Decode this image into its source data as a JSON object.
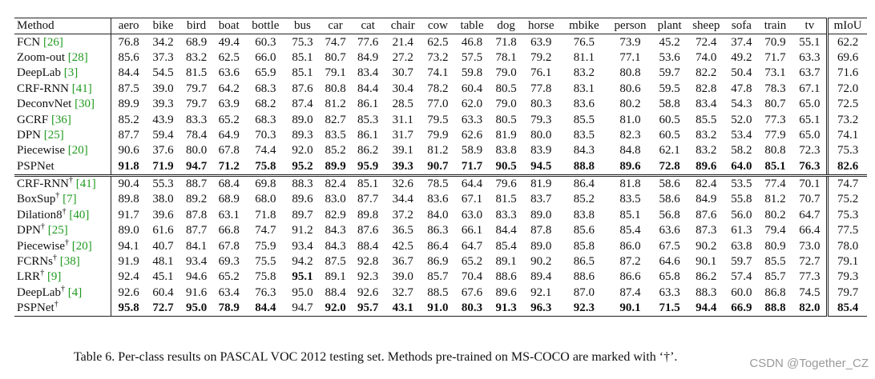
{
  "table": {
    "header": [
      "Method",
      "aero",
      "bike",
      "bird",
      "boat",
      "bottle",
      "bus",
      "car",
      "cat",
      "chair",
      "cow",
      "table",
      "dog",
      "horse",
      "mbike",
      "person",
      "plant",
      "sheep",
      "sofa",
      "train",
      "tv",
      "mIoU"
    ],
    "groups": [
      [
        {
          "method": "FCN",
          "cite": "[26]",
          "values": [
            "76.8",
            "34.2",
            "68.9",
            "49.4",
            "60.3",
            "75.3",
            "74.7",
            "77.6",
            "21.4",
            "62.5",
            "46.8",
            "71.8",
            "63.9",
            "76.5",
            "73.9",
            "45.2",
            "72.4",
            "37.4",
            "70.9",
            "55.1",
            "62.2"
          ]
        },
        {
          "method": "Zoom-out",
          "cite": "[28]",
          "values": [
            "85.6",
            "37.3",
            "83.2",
            "62.5",
            "66.0",
            "85.1",
            "80.7",
            "84.9",
            "27.2",
            "73.2",
            "57.5",
            "78.1",
            "79.2",
            "81.1",
            "77.1",
            "53.6",
            "74.0",
            "49.2",
            "71.7",
            "63.3",
            "69.6"
          ]
        },
        {
          "method": "DeepLab",
          "cite": "[3]",
          "values": [
            "84.4",
            "54.5",
            "81.5",
            "63.6",
            "65.9",
            "85.1",
            "79.1",
            "83.4",
            "30.7",
            "74.1",
            "59.8",
            "79.0",
            "76.1",
            "83.2",
            "80.8",
            "59.7",
            "82.2",
            "50.4",
            "73.1",
            "63.7",
            "71.6"
          ]
        },
        {
          "method": "CRF-RNN",
          "cite": "[41]",
          "values": [
            "87.5",
            "39.0",
            "79.7",
            "64.2",
            "68.3",
            "87.6",
            "80.8",
            "84.4",
            "30.4",
            "78.2",
            "60.4",
            "80.5",
            "77.8",
            "83.1",
            "80.6",
            "59.5",
            "82.8",
            "47.8",
            "78.3",
            "67.1",
            "72.0"
          ]
        },
        {
          "method": "DeconvNet",
          "cite": "[30]",
          "values": [
            "89.9",
            "39.3",
            "79.7",
            "63.9",
            "68.2",
            "87.4",
            "81.2",
            "86.1",
            "28.5",
            "77.0",
            "62.0",
            "79.0",
            "80.3",
            "83.6",
            "80.2",
            "58.8",
            "83.4",
            "54.3",
            "80.7",
            "65.0",
            "72.5"
          ]
        },
        {
          "method": "GCRF",
          "cite": "[36]",
          "values": [
            "85.2",
            "43.9",
            "83.3",
            "65.2",
            "68.3",
            "89.0",
            "82.7",
            "85.3",
            "31.1",
            "79.5",
            "63.3",
            "80.5",
            "79.3",
            "85.5",
            "81.0",
            "60.5",
            "85.5",
            "52.0",
            "77.3",
            "65.1",
            "73.2"
          ]
        },
        {
          "method": "DPN",
          "cite": "[25]",
          "values": [
            "87.7",
            "59.4",
            "78.4",
            "64.9",
            "70.3",
            "89.3",
            "83.5",
            "86.1",
            "31.7",
            "79.9",
            "62.6",
            "81.9",
            "80.0",
            "83.5",
            "82.3",
            "60.5",
            "83.2",
            "53.4",
            "77.9",
            "65.0",
            "74.1"
          ]
        },
        {
          "method": "Piecewise",
          "cite": "[20]",
          "values": [
            "90.6",
            "37.6",
            "80.0",
            "67.8",
            "74.4",
            "92.0",
            "85.2",
            "86.2",
            "39.1",
            "81.2",
            "58.9",
            "83.8",
            "83.9",
            "84.3",
            "84.8",
            "62.1",
            "83.2",
            "58.2",
            "80.8",
            "72.3",
            "75.3"
          ]
        },
        {
          "method": "PSPNet",
          "bold": [
            0,
            1,
            2,
            3,
            4,
            5,
            6,
            7,
            8,
            9,
            10,
            11,
            12,
            13,
            14,
            15,
            16,
            17,
            18,
            19,
            20
          ],
          "values": [
            "91.8",
            "71.9",
            "94.7",
            "71.2",
            "75.8",
            "95.2",
            "89.9",
            "95.9",
            "39.3",
            "90.7",
            "71.7",
            "90.5",
            "94.5",
            "88.8",
            "89.6",
            "72.8",
            "89.6",
            "64.0",
            "85.1",
            "76.3",
            "82.6"
          ]
        }
      ],
      [
        {
          "method": "CRF-RNN",
          "mark": "†",
          "cite": "[41]",
          "values": [
            "90.4",
            "55.3",
            "88.7",
            "68.4",
            "69.8",
            "88.3",
            "82.4",
            "85.1",
            "32.6",
            "78.5",
            "64.4",
            "79.6",
            "81.9",
            "86.4",
            "81.8",
            "58.6",
            "82.4",
            "53.5",
            "77.4",
            "70.1",
            "74.7"
          ]
        },
        {
          "method": "BoxSup",
          "mark": "†",
          "cite": "[7]",
          "values": [
            "89.8",
            "38.0",
            "89.2",
            "68.9",
            "68.0",
            "89.6",
            "83.0",
            "87.7",
            "34.4",
            "83.6",
            "67.1",
            "81.5",
            "83.7",
            "85.2",
            "83.5",
            "58.6",
            "84.9",
            "55.8",
            "81.2",
            "70.7",
            "75.2"
          ]
        },
        {
          "method": "Dilation8",
          "mark": "†",
          "cite": "[40]",
          "values": [
            "91.7",
            "39.6",
            "87.8",
            "63.1",
            "71.8",
            "89.7",
            "82.9",
            "89.8",
            "37.2",
            "84.0",
            "63.0",
            "83.3",
            "89.0",
            "83.8",
            "85.1",
            "56.8",
            "87.6",
            "56.0",
            "80.2",
            "64.7",
            "75.3"
          ]
        },
        {
          "method": "DPN",
          "mark": "†",
          "cite": "[25]",
          "values": [
            "89.0",
            "61.6",
            "87.7",
            "66.8",
            "74.7",
            "91.2",
            "84.3",
            "87.6",
            "36.5",
            "86.3",
            "66.1",
            "84.4",
            "87.8",
            "85.6",
            "85.4",
            "63.6",
            "87.3",
            "61.3",
            "79.4",
            "66.4",
            "77.5"
          ]
        },
        {
          "method": "Piecewise",
          "mark": "†",
          "cite": "[20]",
          "values": [
            "94.1",
            "40.7",
            "84.1",
            "67.8",
            "75.9",
            "93.4",
            "84.3",
            "88.4",
            "42.5",
            "86.4",
            "64.7",
            "85.4",
            "89.0",
            "85.8",
            "86.0",
            "67.5",
            "90.2",
            "63.8",
            "80.9",
            "73.0",
            "78.0"
          ]
        },
        {
          "method": "FCRNs",
          "mark": "†",
          "cite": "[38]",
          "values": [
            "91.9",
            "48.1",
            "93.4",
            "69.3",
            "75.5",
            "94.2",
            "87.5",
            "92.8",
            "36.7",
            "86.9",
            "65.2",
            "89.1",
            "90.2",
            "86.5",
            "87.2",
            "64.6",
            "90.1",
            "59.7",
            "85.5",
            "72.7",
            "79.1"
          ]
        },
        {
          "method": "LRR",
          "mark": "†",
          "cite": "[9]",
          "bold": [
            5
          ],
          "values": [
            "92.4",
            "45.1",
            "94.6",
            "65.2",
            "75.8",
            "95.1",
            "89.1",
            "92.3",
            "39.0",
            "85.7",
            "70.4",
            "88.6",
            "89.4",
            "88.6",
            "86.6",
            "65.8",
            "86.2",
            "57.4",
            "85.7",
            "77.3",
            "79.3"
          ]
        },
        {
          "method": "DeepLab",
          "mark": "†",
          "cite": "[4]",
          "values": [
            "92.6",
            "60.4",
            "91.6",
            "63.4",
            "76.3",
            "95.0",
            "88.4",
            "92.6",
            "32.7",
            "88.5",
            "67.6",
            "89.6",
            "92.1",
            "87.0",
            "87.4",
            "63.3",
            "88.3",
            "60.0",
            "86.8",
            "74.5",
            "79.7"
          ]
        },
        {
          "method": "PSPNet",
          "mark": "†",
          "bold": [
            0,
            1,
            2,
            3,
            4,
            6,
            7,
            8,
            9,
            10,
            11,
            12,
            13,
            14,
            15,
            16,
            17,
            18,
            19,
            20
          ],
          "values": [
            "95.8",
            "72.7",
            "95.0",
            "78.9",
            "84.4",
            "94.7",
            "92.0",
            "95.7",
            "43.1",
            "91.0",
            "80.3",
            "91.3",
            "96.3",
            "92.3",
            "90.1",
            "71.5",
            "94.4",
            "66.9",
            "88.8",
            "82.0",
            "85.4"
          ]
        }
      ]
    ]
  },
  "caption": "Table 6. Per-class results on PASCAL VOC 2012 testing set. Methods pre-trained on MS-COCO are marked with ‘†’.",
  "watermark": "CSDN @Together_CZ"
}
